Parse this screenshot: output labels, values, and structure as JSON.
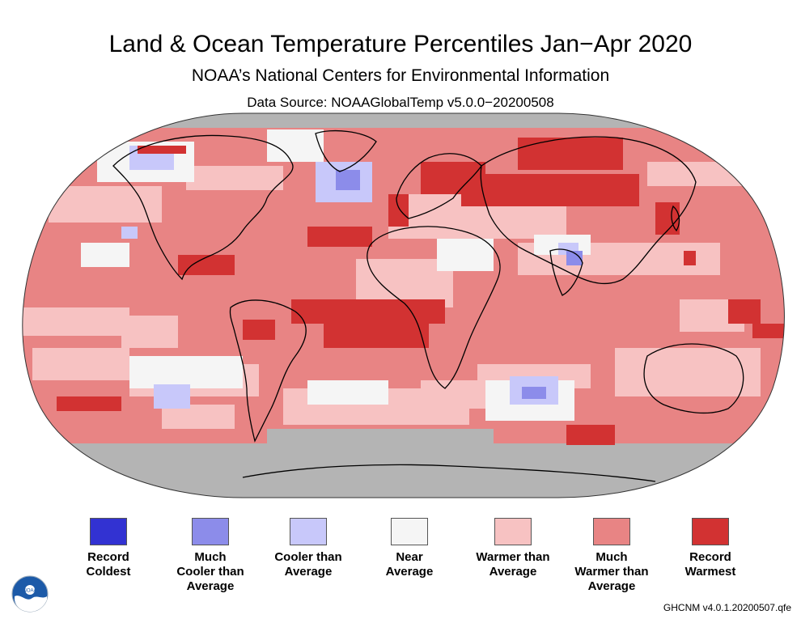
{
  "header": {
    "title": "Land & Ocean Temperature Percentiles Jan−Apr 2020",
    "subtitle": "NOAA’s National Centers for Environmental Information",
    "source": "Data Source: NOAAGlobalTemp v5.0.0−20200508"
  },
  "colors": {
    "record_coldest": "#3232d2",
    "much_cooler": "#8c8cea",
    "cooler": "#c8c8fa",
    "near": "#f5f5f5",
    "warmer": "#f7c2c2",
    "much_warmer": "#e88484",
    "record_warmest": "#d23232",
    "no_data": "#b4b4b4",
    "coastline": "#000000"
  },
  "legend": [
    {
      "label": "Record\nColdest",
      "color": "#3232d2"
    },
    {
      "label": "Much\nCooler than\nAverage",
      "color": "#8c8cea"
    },
    {
      "label": "Cooler than\nAverage",
      "color": "#c8c8fa"
    },
    {
      "label": "Near\nAverage",
      "color": "#f5f5f5"
    },
    {
      "label": "Warmer than\nAverage",
      "color": "#f7c2c2"
    },
    {
      "label": "Much\nWarmer than\nAverage",
      "color": "#e88484"
    },
    {
      "label": "Record\nWarmest",
      "color": "#d23232"
    }
  ],
  "logo": {
    "text": "NOAA",
    "icon": "noaa-logo-icon"
  },
  "footer": {
    "version": "GHCNM v4.0.1.20200507.qfe"
  }
}
